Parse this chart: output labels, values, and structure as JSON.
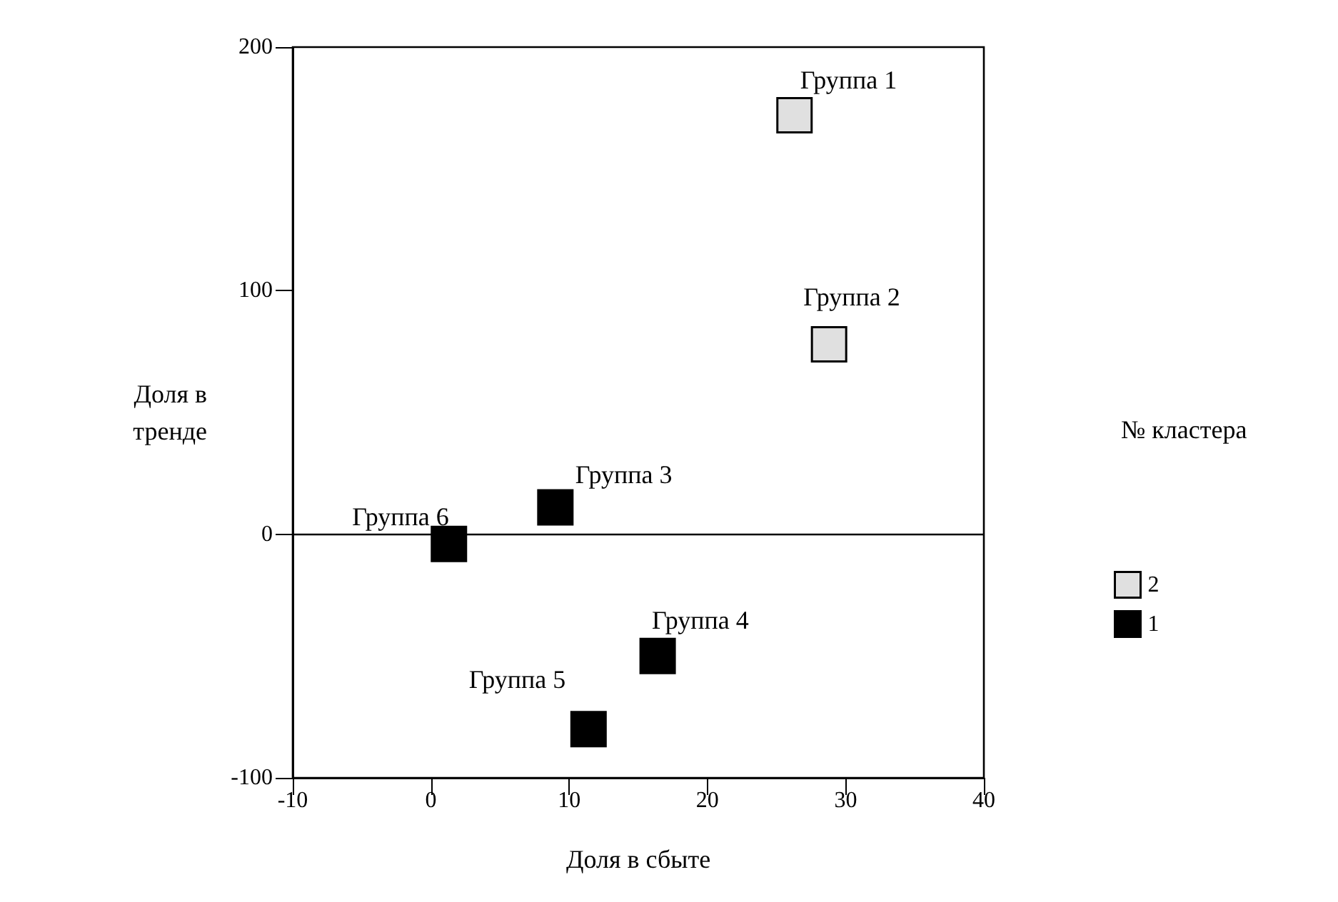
{
  "chart_data": {
    "type": "scatter",
    "xlabel": "Доля в сбыте",
    "ylabel": "Доля в\nтренде",
    "legend_title": "№ кластера",
    "legend": "right",
    "marker": "square",
    "grid": false,
    "xlim": [
      -10,
      40
    ],
    "xticks": [
      -10,
      0,
      10,
      20,
      30,
      40
    ],
    "ylim": [
      -100,
      200
    ],
    "yticks": [
      -100,
      0,
      100,
      200
    ],
    "ref_lines": [
      {
        "axis": "y",
        "value": 0,
        "color": "#000000"
      }
    ],
    "series": [
      {
        "name": "2",
        "color": "#e0e0e0",
        "x": [
          26.3,
          28.8
        ],
        "values": [
          172,
          78
        ]
      },
      {
        "name": "1",
        "color": "#000000",
        "x": [
          9,
          1.3,
          16.4,
          11.4
        ],
        "values": [
          11,
          -4,
          -50,
          -80
        ]
      }
    ],
    "annotations": [
      {
        "text": "Группа 1",
        "x": 26.3,
        "y": 172
      },
      {
        "text": "Группа 2",
        "x": 28.8,
        "y": 78
      },
      {
        "text": "Группа 3",
        "x": 9,
        "y": 11
      },
      {
        "text": "Группа 4",
        "x": 16.4,
        "y": -50
      },
      {
        "text": "Группа 5",
        "x": 11.4,
        "y": -80
      },
      {
        "text": "Группа 6",
        "x": 1.3,
        "y": -4
      }
    ]
  }
}
